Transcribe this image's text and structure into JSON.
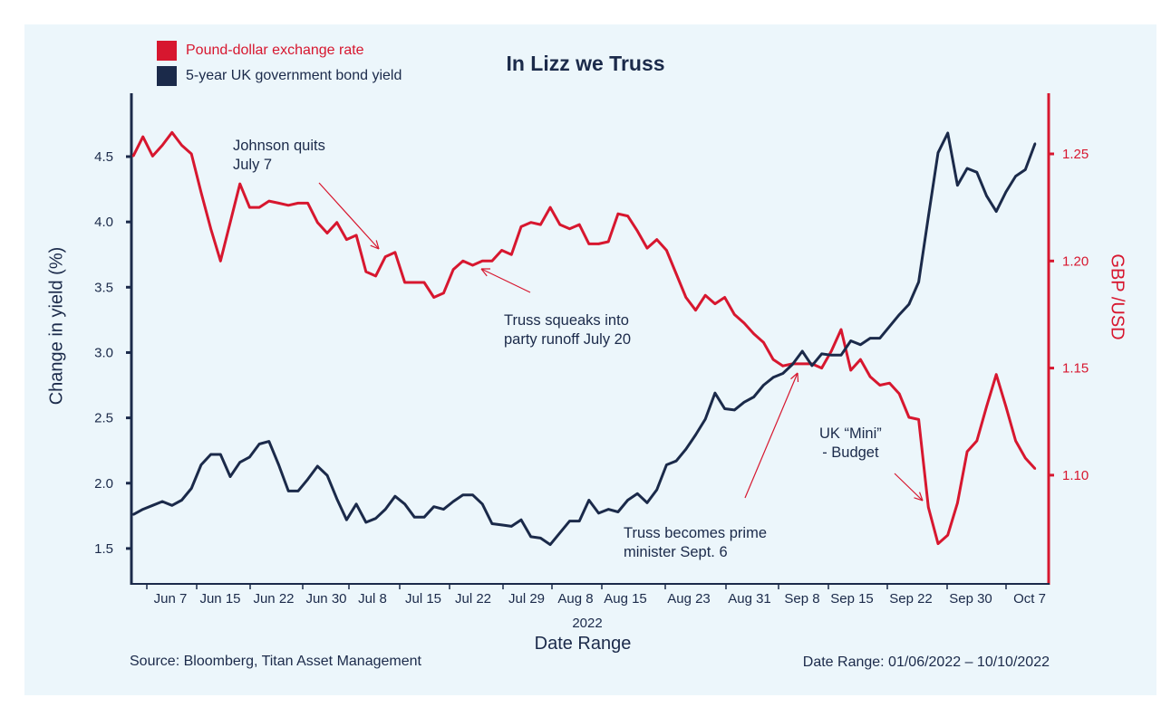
{
  "chart_data": {
    "type": "line",
    "title": "In Lizz we Truss",
    "xlabel": "Date Range",
    "x_sublabel": "2022",
    "ylabel_left": "Change in yield (%)",
    "ylabel_right": "GBP /USD",
    "ylim_left": [
      1.2,
      4.9
    ],
    "ylim_right": [
      1.05,
      1.28
    ],
    "yticks_left": [
      "1.5",
      "2.0",
      "2.5",
      "3.0",
      "3.5",
      "4.0",
      "4.5"
    ],
    "yticks_right": [
      "1.10",
      "1.15",
      "1.20",
      "1.25"
    ],
    "xticks": [
      "Jun 7",
      "Jun 15",
      "Jun 22",
      "Jun 30",
      "Jul 8",
      "Jul 15",
      "Jul 22",
      "Jul 29",
      "Aug 8",
      "Aug 15",
      "Aug 23",
      "Aug 31",
      "Sep 8",
      "Sep 15",
      "Sep 22",
      "Sep 30",
      "Oct 7"
    ],
    "grid": false,
    "legend_position": "top-left",
    "x": [
      "2022-06-01",
      "2022-06-02",
      "2022-06-03",
      "2022-06-06",
      "2022-06-07",
      "2022-06-08",
      "2022-06-09",
      "2022-06-10",
      "2022-06-13",
      "2022-06-14",
      "2022-06-15",
      "2022-06-16",
      "2022-06-17",
      "2022-06-20",
      "2022-06-21",
      "2022-06-22",
      "2022-06-23",
      "2022-06-24",
      "2022-06-27",
      "2022-06-28",
      "2022-06-29",
      "2022-06-30",
      "2022-07-01",
      "2022-07-04",
      "2022-07-05",
      "2022-07-06",
      "2022-07-07",
      "2022-07-08",
      "2022-07-11",
      "2022-07-12",
      "2022-07-13",
      "2022-07-14",
      "2022-07-15",
      "2022-07-18",
      "2022-07-19",
      "2022-07-20",
      "2022-07-21",
      "2022-07-22",
      "2022-07-25",
      "2022-07-26",
      "2022-07-27",
      "2022-07-28",
      "2022-07-29",
      "2022-08-01",
      "2022-08-02",
      "2022-08-03",
      "2022-08-04",
      "2022-08-05",
      "2022-08-08",
      "2022-08-09",
      "2022-08-10",
      "2022-08-11",
      "2022-08-12",
      "2022-08-15",
      "2022-08-16",
      "2022-08-17",
      "2022-08-18",
      "2022-08-19",
      "2022-08-22",
      "2022-08-23",
      "2022-08-24",
      "2022-08-25",
      "2022-08-26",
      "2022-08-29",
      "2022-08-30",
      "2022-08-31",
      "2022-09-01",
      "2022-09-02",
      "2022-09-05",
      "2022-09-06",
      "2022-09-07",
      "2022-09-08",
      "2022-09-09",
      "2022-09-12",
      "2022-09-13",
      "2022-09-14",
      "2022-09-15",
      "2022-09-16",
      "2022-09-19",
      "2022-09-20",
      "2022-09-21",
      "2022-09-22",
      "2022-09-23",
      "2022-09-26",
      "2022-09-27",
      "2022-09-28",
      "2022-09-29",
      "2022-09-30",
      "2022-10-03",
      "2022-10-04",
      "2022-10-05",
      "2022-10-06",
      "2022-10-07",
      "2022-10-10"
    ],
    "series": [
      {
        "name": "Pound-dollar exchange rate",
        "axis": "right",
        "color": "#d7172f",
        "values": [
          1.249,
          1.258,
          1.249,
          1.254,
          1.26,
          1.254,
          1.25,
          1.232,
          1.215,
          1.2,
          1.218,
          1.236,
          1.225,
          1.225,
          1.228,
          1.227,
          1.226,
          1.227,
          1.227,
          1.218,
          1.213,
          1.218,
          1.21,
          1.212,
          1.195,
          1.193,
          1.202,
          1.204,
          1.19,
          1.19,
          1.19,
          1.183,
          1.185,
          1.196,
          1.2,
          1.198,
          1.2,
          1.2,
          1.205,
          1.203,
          1.216,
          1.218,
          1.217,
          1.225,
          1.217,
          1.215,
          1.217,
          1.208,
          1.208,
          1.209,
          1.222,
          1.221,
          1.214,
          1.206,
          1.21,
          1.205,
          1.194,
          1.183,
          1.177,
          1.184,
          1.18,
          1.183,
          1.175,
          1.171,
          1.166,
          1.162,
          1.154,
          1.151,
          1.152,
          1.152,
          1.152,
          1.15,
          1.158,
          1.168,
          1.149,
          1.154,
          1.146,
          1.142,
          1.143,
          1.138,
          1.127,
          1.126,
          1.085,
          1.068,
          1.072,
          1.087,
          1.111,
          1.116,
          1.132,
          1.147,
          1.132,
          1.116,
          1.108,
          1.103
        ]
      },
      {
        "name": "5-year UK government bond yield",
        "axis": "left",
        "color": "#1b2a4a",
        "values": [
          1.76,
          1.8,
          1.83,
          1.86,
          1.83,
          1.87,
          1.96,
          2.14,
          2.22,
          2.22,
          2.05,
          2.16,
          2.2,
          2.3,
          2.32,
          2.14,
          1.94,
          1.94,
          2.03,
          2.13,
          2.06,
          1.88,
          1.72,
          1.84,
          1.7,
          1.73,
          1.8,
          1.9,
          1.84,
          1.74,
          1.74,
          1.82,
          1.8,
          1.86,
          1.91,
          1.91,
          1.84,
          1.69,
          1.68,
          1.67,
          1.72,
          1.59,
          1.58,
          1.53,
          1.62,
          1.71,
          1.71,
          1.87,
          1.77,
          1.8,
          1.78,
          1.87,
          1.92,
          1.85,
          1.95,
          2.14,
          2.17,
          2.26,
          2.37,
          2.49,
          2.69,
          2.57,
          2.56,
          2.62,
          2.66,
          2.75,
          2.81,
          2.84,
          2.91,
          3.01,
          2.9,
          2.99,
          2.98,
          2.98,
          3.09,
          3.06,
          3.11,
          3.11,
          3.2,
          3.29,
          3.37,
          3.54,
          4.04,
          4.53,
          4.68,
          4.28,
          4.41,
          4.38,
          4.2,
          4.08,
          4.23,
          4.35,
          4.4,
          4.6
        ]
      }
    ],
    "annotations": [
      {
        "text_lines": [
          "Johnson quits",
          "July 7"
        ]
      },
      {
        "text_lines": [
          "Truss squeaks into",
          "party runoff July 20"
        ]
      },
      {
        "text_lines": [
          "Truss becomes prime",
          "minister Sept. 6"
        ]
      },
      {
        "text_lines": [
          "UK “Mini”",
          "- Budget"
        ]
      }
    ]
  },
  "footer": {
    "source": "Source: Bloomberg, Titan Asset Management",
    "date_range": "Date Range: 01/06/2022 – 10/10/2022"
  }
}
